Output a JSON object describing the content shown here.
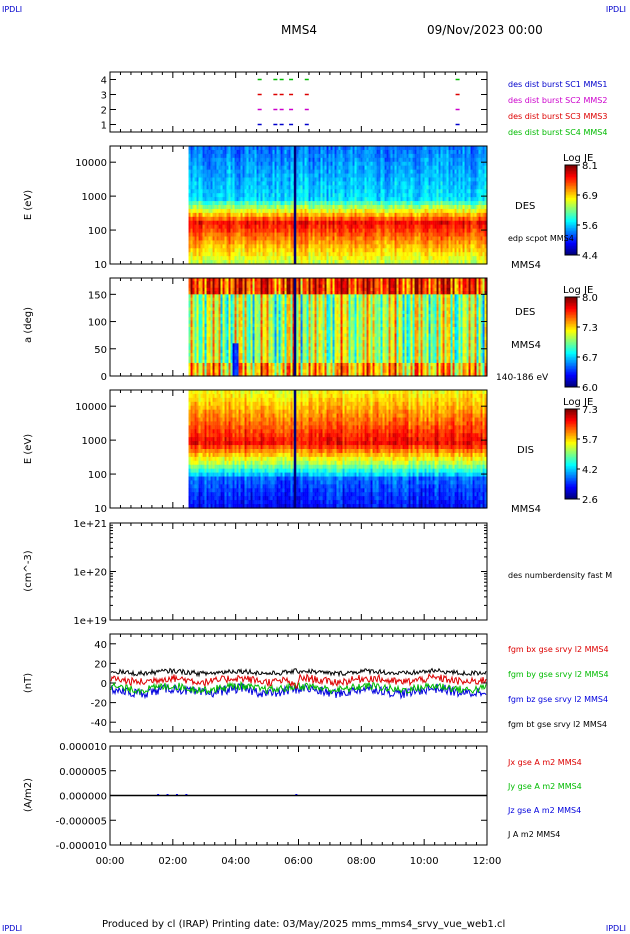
{
  "header": {
    "corner_label": "IPDLI",
    "title": "MMS4",
    "date": "09/Nov/2023 00:00"
  },
  "footer": {
    "text": "Produced by cl (IRAP)   Printing date: 03/May/2025   mms_mms4_srvy_vue_web1.cl"
  },
  "x_axis": {
    "ticks": [
      "00:00",
      "02:00",
      "04:00",
      "06:00",
      "08:00",
      "10:00",
      "12:00"
    ],
    "range_hours": [
      0,
      12
    ]
  },
  "colors": {
    "mms1": "#0000cc",
    "mms2": "#cc00cc",
    "mms3": "#dd0000",
    "mms4": "#00bb00",
    "bx": "#dd0000",
    "by": "#00bb00",
    "bz": "#0000dd",
    "bt": "#000000"
  },
  "chart_data": [
    {
      "type": "scatter",
      "panel": "burst",
      "y_ticks": [
        "4",
        "3",
        "2",
        "1"
      ],
      "ylim": [
        0.5,
        4.5
      ],
      "legend": [
        {
          "label": "des dist burst SC1 MMS1",
          "color": "#0000cc"
        },
        {
          "label": "des dist burst SC2 MMS2",
          "color": "#cc00cc"
        },
        {
          "label": "des dist burst SC3 MMS3",
          "color": "#dd0000"
        },
        {
          "label": "des dist burst SC4 MMS4",
          "color": "#00bb00"
        }
      ],
      "burst_times_hours": [
        4.7,
        5.2,
        5.4,
        5.7,
        6.2,
        11.0
      ]
    },
    {
      "type": "heatmap",
      "panel": "des-energy",
      "ylabel": "E (eV)",
      "y_ticks": [
        "10000",
        "1000",
        "100",
        "10"
      ],
      "ylim": [
        10,
        30000
      ],
      "log_y": true,
      "data_start_hours": 2.5,
      "right_labels": [
        "DES",
        "edp scpot MMS4",
        "MMS4"
      ],
      "colorbar": {
        "title": "Log JE",
        "ticks": [
          "8.1",
          "6.9",
          "5.6",
          "4.4"
        ],
        "range": [
          4.4,
          8.1
        ]
      }
    },
    {
      "type": "heatmap",
      "panel": "des-pitch",
      "ylabel": "a (deg)",
      "y_ticks": [
        "150",
        "100",
        "50",
        "0"
      ],
      "ylim": [
        0,
        180
      ],
      "data_start_hours": 2.5,
      "right_labels": [
        "DES",
        "MMS4",
        "140-186 eV"
      ],
      "colorbar": {
        "title": "Log JE",
        "ticks": [
          "8.0",
          "7.3",
          "6.7",
          "6.0"
        ],
        "range": [
          6.0,
          8.0
        ]
      }
    },
    {
      "type": "heatmap",
      "panel": "dis-energy",
      "ylabel": "E (eV)",
      "y_ticks": [
        "10000",
        "1000",
        "100",
        "10"
      ],
      "ylim": [
        10,
        30000
      ],
      "log_y": true,
      "data_start_hours": 2.5,
      "right_labels": [
        "DIS",
        "MMS4"
      ],
      "colorbar": {
        "title": "Log JE",
        "ticks": [
          "7.3",
          "5.7",
          "4.2",
          "2.6"
        ],
        "range": [
          2.6,
          7.3
        ]
      }
    },
    {
      "type": "line",
      "panel": "density",
      "ylabel": "(cm^-3)",
      "y_ticks": [
        "1e+21",
        "1e+20",
        "1e+19"
      ],
      "legend": [
        {
          "label": "des numberdensity fast M",
          "color": "#000000"
        }
      ],
      "series": []
    },
    {
      "type": "line",
      "panel": "bfield",
      "ylabel": "(nT)",
      "y_ticks": [
        "40",
        "20",
        "0",
        "-20",
        "-40"
      ],
      "ylim": [
        -50,
        50
      ],
      "legend": [
        {
          "label": "fgm bx gse srvy l2 MMS4",
          "color": "#dd0000"
        },
        {
          "label": "fgm by gse srvy l2 MMS4",
          "color": "#00bb00"
        },
        {
          "label": "fgm bz gse srvy l2 MMS4",
          "color": "#0000dd"
        },
        {
          "label": "fgm bt gse srvy l2 MMS4",
          "color": "#000000"
        }
      ],
      "series_levels_nT": {
        "bt": 11,
        "bx": 3,
        "by": -5,
        "bz": -8
      }
    },
    {
      "type": "line",
      "panel": "current",
      "ylabel": "(A/m2)",
      "y_ticks": [
        "0.000010",
        "0.000005",
        "0.000000",
        "-0.000005",
        "-0.000010"
      ],
      "ylim": [
        -1e-05,
        1e-05
      ],
      "legend": [
        {
          "label": "Jx gse A m2 MMS4",
          "color": "#dd0000"
        },
        {
          "label": "Jy gse A m2 MMS4",
          "color": "#00bb00"
        },
        {
          "label": "Jz gse A m2 MMS4",
          "color": "#0000dd"
        },
        {
          "label": "J A m2 MMS4",
          "color": "#000000"
        }
      ]
    }
  ]
}
